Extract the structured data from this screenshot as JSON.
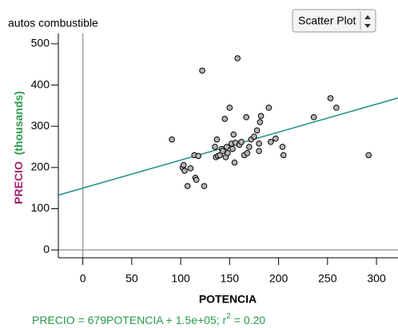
{
  "chart_data": {
    "type": "scatter",
    "title": "autos combustible",
    "menu": "Scatter Plot",
    "x_label": "POTENCIA",
    "y_label": "PRECIO",
    "y_label_unit": "(thousands)",
    "label_color": "#a0236e",
    "unit_color": "#2a9a4a",
    "point_color": "#b4b4b4",
    "xlim": [
      -25,
      322
    ],
    "ylim": [
      -19,
      525
    ],
    "xticks": [
      0,
      50,
      100,
      150,
      200,
      250,
      300
    ],
    "yticks": [
      0,
      100,
      200,
      300,
      400,
      500
    ],
    "x": [
      91,
      102,
      103,
      104,
      107,
      110,
      114,
      115,
      116,
      118,
      122,
      124,
      135,
      136,
      137,
      138,
      140,
      142,
      143,
      145,
      146,
      147,
      148,
      150,
      152,
      153,
      154,
      155,
      156,
      158,
      160,
      162,
      165,
      167,
      168,
      170,
      172,
      175,
      178,
      180,
      180,
      181,
      182,
      190,
      192,
      197,
      204,
      205,
      236,
      253,
      259,
      292
    ],
    "values": [
      268,
      200,
      206,
      192,
      155,
      198,
      230,
      175,
      170,
      228,
      435,
      155,
      250,
      225,
      268,
      228,
      230,
      245,
      240,
      318,
      225,
      250,
      235,
      345,
      258,
      245,
      280,
      212,
      260,
      465,
      255,
      262,
      230,
      322,
      235,
      250,
      268,
      275,
      290,
      240,
      258,
      310,
      325,
      345,
      262,
      270,
      250,
      230,
      322,
      368,
      345,
      230
    ],
    "fit": {
      "slope": 0.679,
      "intercept": 150,
      "color": "#1a8a8a",
      "label": "PRECIO = 679POTENCIA + 1.5e+05; r",
      "sup": "2",
      "r2_label": "= 0.20"
    }
  }
}
